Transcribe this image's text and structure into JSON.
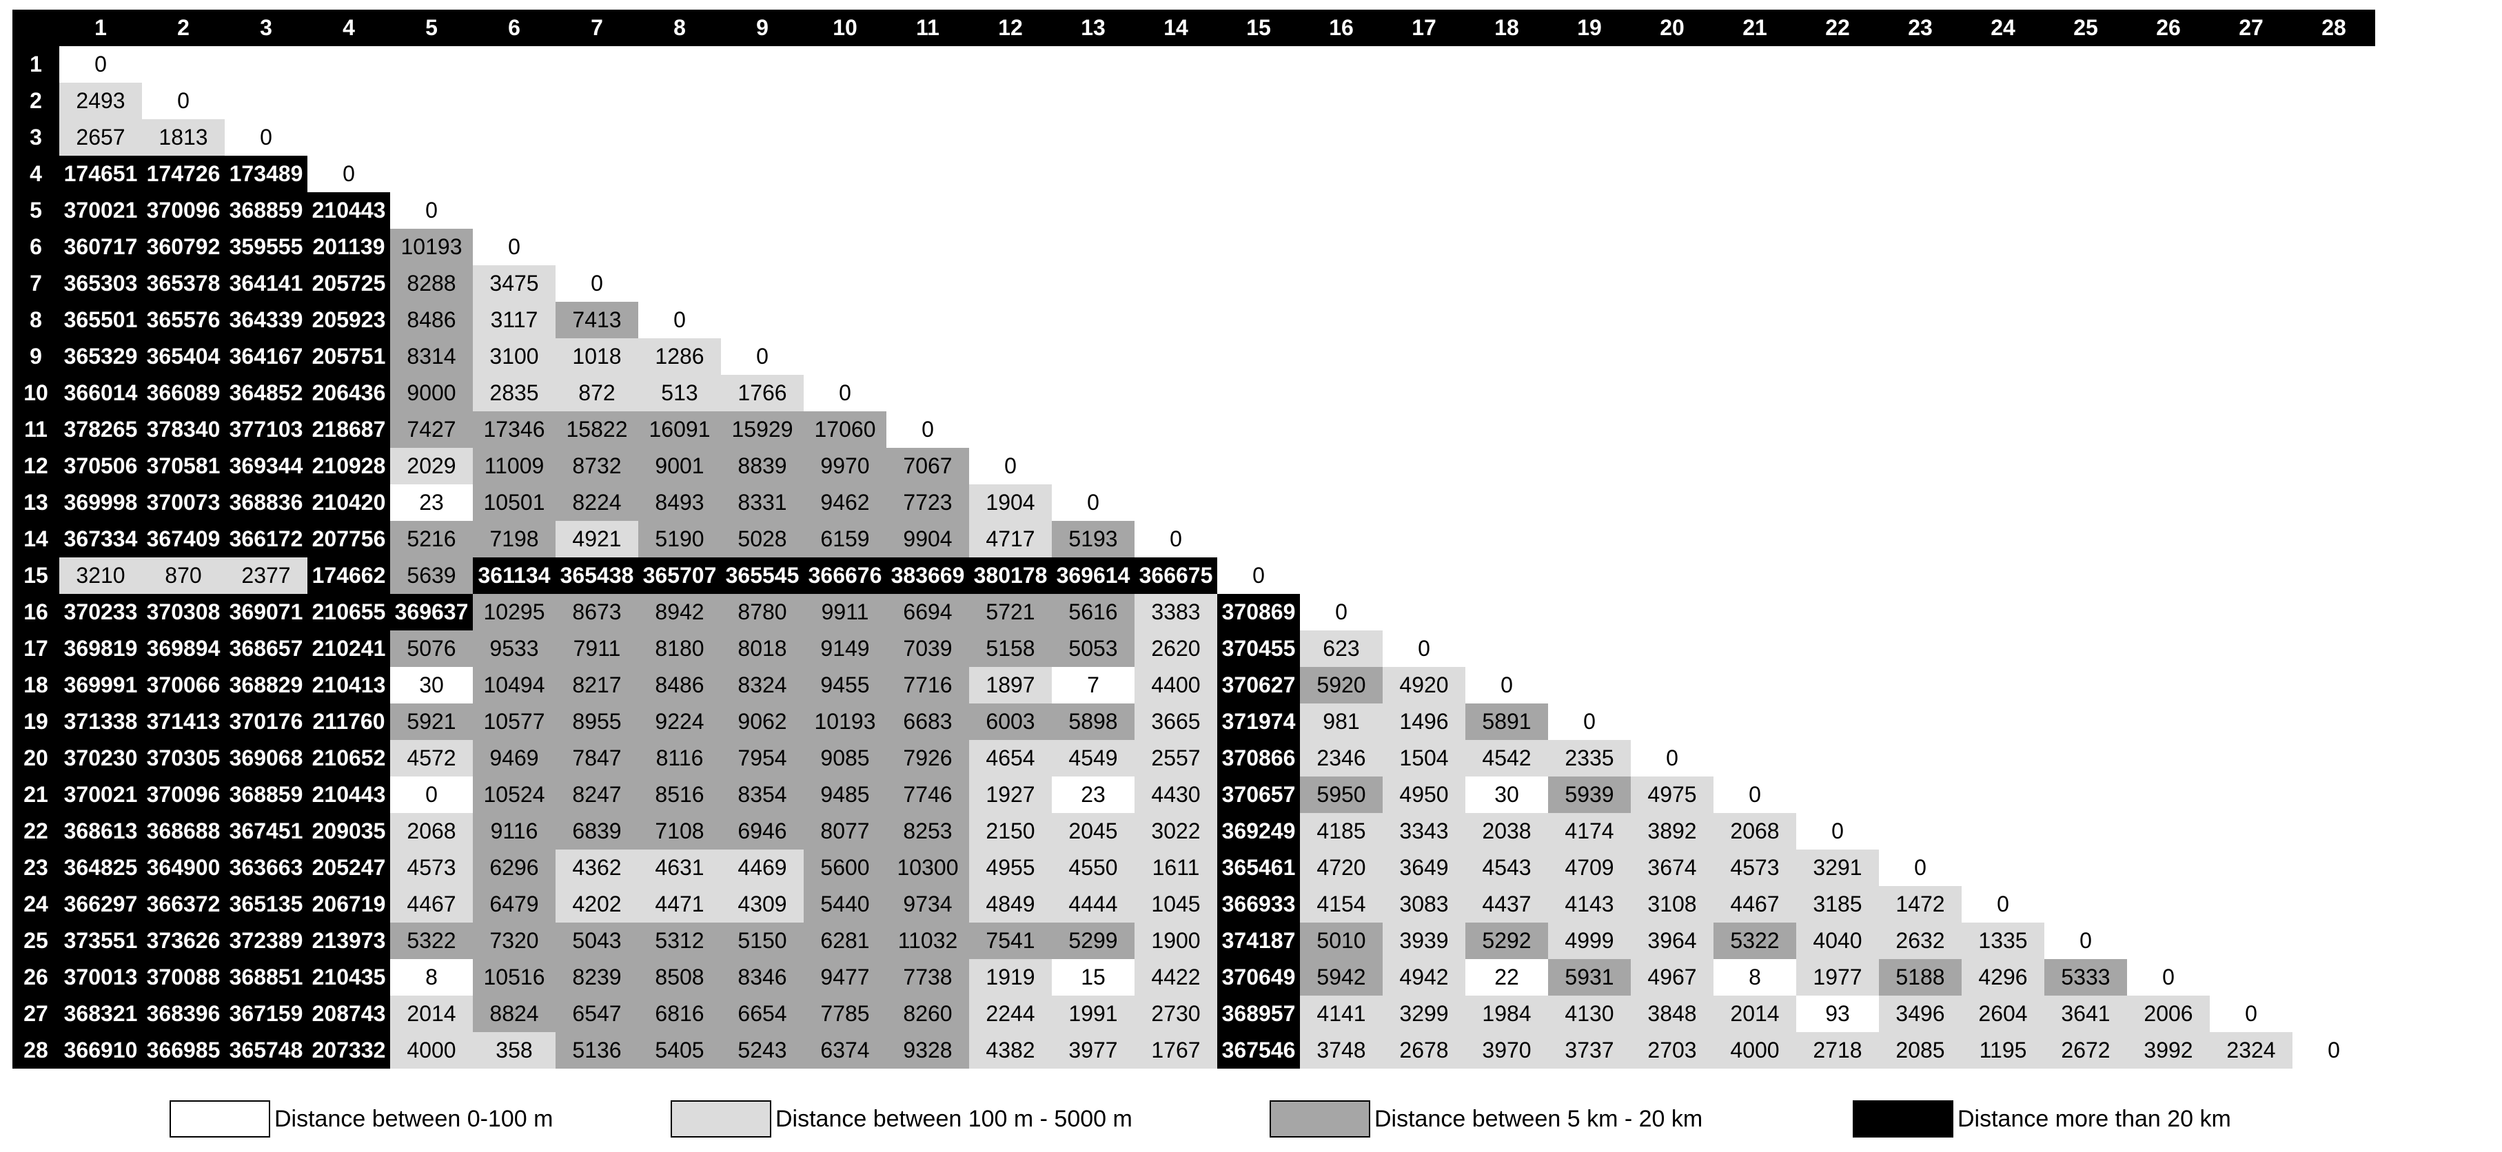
{
  "chart_data": {
    "type": "table",
    "column_headers": [
      "1",
      "2",
      "3",
      "4",
      "5",
      "6",
      "7",
      "8",
      "9",
      "10",
      "11",
      "12",
      "13",
      "14",
      "15",
      "16",
      "17",
      "18",
      "19",
      "20",
      "21",
      "22",
      "23",
      "24",
      "25",
      "26",
      "27",
      "28"
    ],
    "row_headers": [
      "1",
      "2",
      "3",
      "4",
      "5",
      "6",
      "7",
      "8",
      "9",
      "10",
      "11",
      "12",
      "13",
      "14",
      "15",
      "16",
      "17",
      "18",
      "19",
      "20",
      "21",
      "22",
      "23",
      "24",
      "25",
      "26",
      "27",
      "28"
    ],
    "rows": [
      [
        0
      ],
      [
        2493,
        0
      ],
      [
        2657,
        1813,
        0
      ],
      [
        174651,
        174726,
        173489,
        0
      ],
      [
        370021,
        370096,
        368859,
        210443,
        0
      ],
      [
        360717,
        360792,
        359555,
        201139,
        10193,
        0
      ],
      [
        365303,
        365378,
        364141,
        205725,
        8288,
        3475,
        0
      ],
      [
        365501,
        365576,
        364339,
        205923,
        8486,
        3117,
        7413,
        0
      ],
      [
        365329,
        365404,
        364167,
        205751,
        8314,
        3100,
        1018,
        1286,
        0
      ],
      [
        366014,
        366089,
        364852,
        206436,
        9000,
        2835,
        872,
        513,
        1766,
        0
      ],
      [
        378265,
        378340,
        377103,
        218687,
        7427,
        17346,
        15822,
        16091,
        15929,
        17060,
        0
      ],
      [
        370506,
        370581,
        369344,
        210928,
        2029,
        11009,
        8732,
        9001,
        8839,
        9970,
        7067,
        0
      ],
      [
        369998,
        370073,
        368836,
        210420,
        23,
        10501,
        8224,
        8493,
        8331,
        9462,
        7723,
        1904,
        0
      ],
      [
        367334,
        367409,
        366172,
        207756,
        5216,
        7198,
        4921,
        5190,
        5028,
        6159,
        9904,
        4717,
        5193,
        0
      ],
      [
        3210,
        870,
        2377,
        174662,
        5639,
        361134,
        365438,
        365707,
        365545,
        366676,
        383669,
        380178,
        369614,
        366675,
        0
      ],
      [
        370233,
        370308,
        369071,
        210655,
        369637,
        10295,
        8673,
        8942,
        8780,
        9911,
        6694,
        5721,
        5616,
        3383,
        370869,
        0
      ],
      [
        369819,
        369894,
        368657,
        210241,
        5076,
        9533,
        7911,
        8180,
        8018,
        9149,
        7039,
        5158,
        5053,
        2620,
        370455,
        623,
        0
      ],
      [
        369991,
        370066,
        368829,
        210413,
        30,
        10494,
        8217,
        8486,
        8324,
        9455,
        7716,
        1897,
        7,
        4400,
        370627,
        5920,
        4920,
        0
      ],
      [
        371338,
        371413,
        370176,
        211760,
        5921,
        10577,
        8955,
        9224,
        9062,
        10193,
        6683,
        6003,
        5898,
        3665,
        371974,
        981,
        1496,
        5891,
        0
      ],
      [
        370230,
        370305,
        369068,
        210652,
        4572,
        9469,
        7847,
        8116,
        7954,
        9085,
        7926,
        4654,
        4549,
        2557,
        370866,
        2346,
        1504,
        4542,
        2335,
        0
      ],
      [
        370021,
        370096,
        368859,
        210443,
        0,
        10524,
        8247,
        8516,
        8354,
        9485,
        7746,
        1927,
        23,
        4430,
        370657,
        5950,
        4950,
        30,
        5939,
        4975,
        0
      ],
      [
        368613,
        368688,
        367451,
        209035,
        2068,
        9116,
        6839,
        7108,
        6946,
        8077,
        8253,
        2150,
        2045,
        3022,
        369249,
        4185,
        3343,
        2038,
        4174,
        3892,
        2068,
        0
      ],
      [
        364825,
        364900,
        363663,
        205247,
        4573,
        6296,
        4362,
        4631,
        4469,
        5600,
        10300,
        4955,
        4550,
        1611,
        365461,
        4720,
        3649,
        4543,
        4709,
        3674,
        4573,
        3291,
        0
      ],
      [
        366297,
        366372,
        365135,
        206719,
        4467,
        6479,
        4202,
        4471,
        4309,
        5440,
        9734,
        4849,
        4444,
        1045,
        366933,
        4154,
        3083,
        4437,
        4143,
        3108,
        4467,
        3185,
        1472,
        0
      ],
      [
        373551,
        373626,
        372389,
        213973,
        5322,
        7320,
        5043,
        5312,
        5150,
        6281,
        11032,
        7541,
        5299,
        1900,
        374187,
        5010,
        3939,
        5292,
        4999,
        3964,
        5322,
        4040,
        2632,
        1335,
        0
      ],
      [
        370013,
        370088,
        368851,
        210435,
        8,
        10516,
        8239,
        8508,
        8346,
        9477,
        7738,
        1919,
        15,
        4422,
        370649,
        5942,
        4942,
        22,
        5931,
        4967,
        8,
        1977,
        5188,
        4296,
        5333,
        0
      ],
      [
        368321,
        368396,
        367159,
        208743,
        2014,
        8824,
        6547,
        6816,
        6654,
        7785,
        8260,
        2244,
        1991,
        2730,
        368957,
        4141,
        3299,
        1984,
        4130,
        3848,
        2014,
        93,
        3496,
        2604,
        3641,
        2006,
        0
      ],
      [
        366910,
        366985,
        365748,
        207332,
        4000,
        358,
        5136,
        5405,
        5243,
        6374,
        9328,
        4382,
        3977,
        1767,
        367546,
        3748,
        2678,
        3970,
        3737,
        2703,
        4000,
        2718,
        2085,
        1195,
        2672,
        3992,
        2324,
        0
      ]
    ],
    "color_scale": [
      {
        "label": "Distance between 0-100 m",
        "color": "#ffffff",
        "max": 100
      },
      {
        "label": "Distance between 100 m - 5000 m",
        "color": "#dcdcdc",
        "max": 5000
      },
      {
        "label": "Distance between 5 km - 20 km",
        "color": "#a6a6a6",
        "max": 20000
      },
      {
        "label": "Distance more than 20 km",
        "color": "#000000",
        "max": null
      }
    ]
  },
  "legend": [
    "Distance between 0-100 m",
    "Distance between 100 m - 5000 m",
    "Distance between 5 km - 20 km",
    "Distance more than 20 km"
  ]
}
